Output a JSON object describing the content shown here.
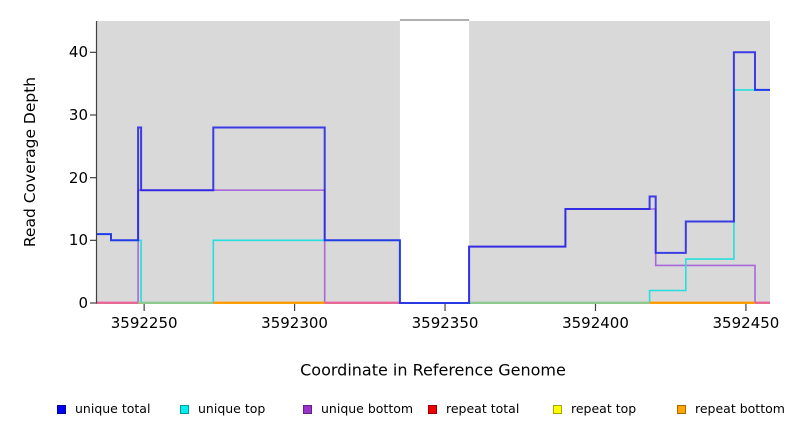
{
  "chart_data": {
    "type": "line",
    "style": "step",
    "title": "",
    "xlabel": "Coordinate in Reference Genome",
    "ylabel": "Read Coverage Depth",
    "xlim": [
      3592234,
      3592458
    ],
    "ylim": [
      0,
      45
    ],
    "xticks": [
      3592250,
      3592300,
      3592350,
      3592400,
      3592450
    ],
    "yticks": [
      0,
      10,
      20,
      30,
      40
    ],
    "plot_background": "#d9d9d9",
    "highlight_band": {
      "x0": 3592335,
      "x1": 3592358,
      "fill": "#ffffff",
      "top_border": "#808080"
    },
    "series": [
      {
        "name": "repeat total",
        "legend_color": "#ee0000",
        "line_color": "#ee0000",
        "width": 1.6,
        "points": [
          [
            3592234,
            0
          ]
        ]
      },
      {
        "name": "repeat top",
        "legend_color": "#ffff00",
        "line_color": "#ffff00",
        "width": 1.6,
        "points": [
          [
            3592234,
            0
          ]
        ]
      },
      {
        "name": "repeat bottom",
        "legend_color": "#ffa500",
        "line_color": "#ff9800",
        "width": 1.6,
        "points": [
          [
            3592234,
            0
          ]
        ]
      },
      {
        "name": "unique bottom",
        "legend_color": "#9932cc",
        "line_color": "#a868dc",
        "width": 1.6,
        "points": [
          [
            3592234,
            0
          ],
          [
            3592248,
            18
          ],
          [
            3592310,
            0
          ],
          [
            3592358,
            9
          ],
          [
            3592390,
            15
          ],
          [
            3592420,
            6
          ],
          [
            3592453,
            0
          ]
        ]
      },
      {
        "name": "unique top",
        "legend_color": "#00eeee",
        "line_color": "#26dede",
        "width": 1.6,
        "points": [
          [
            3592234,
            11
          ],
          [
            3592239,
            10
          ],
          [
            3592249,
            0
          ],
          [
            3592273,
            10
          ],
          [
            3592335,
            0
          ],
          [
            3592418,
            2
          ],
          [
            3592430,
            7
          ],
          [
            3592446,
            34
          ]
        ]
      },
      {
        "name": "unique total",
        "legend_color": "#0000ee",
        "line_color": "#2020e6",
        "width": 2,
        "opacity": 0.85,
        "points": [
          [
            3592234,
            11
          ],
          [
            3592239,
            10
          ],
          [
            3592248,
            28
          ],
          [
            3592249,
            18
          ],
          [
            3592273,
            28
          ],
          [
            3592310,
            10
          ],
          [
            3592335,
            0
          ],
          [
            3592358,
            9
          ],
          [
            3592390,
            15
          ],
          [
            3592418,
            17
          ],
          [
            3592420,
            8
          ],
          [
            3592430,
            13
          ],
          [
            3592446,
            40
          ],
          [
            3592453,
            34
          ]
        ]
      }
    ],
    "zero_line_visible_colors": [
      {
        "x0": 3592234,
        "x1": 3592248,
        "color": "#ec609b"
      },
      {
        "x0": 3592248,
        "x1": 3592273,
        "color": "#8fcb96"
      },
      {
        "x0": 3592273,
        "x1": 3592310,
        "color": "#ff9800"
      },
      {
        "x0": 3592310,
        "x1": 3592335,
        "color": "#ec609b"
      },
      {
        "x0": 3592358,
        "x1": 3592418,
        "color": "#8fcb96"
      },
      {
        "x0": 3592418,
        "x1": 3592453,
        "color": "#ff9800"
      },
      {
        "x0": 3592453,
        "x1": 3592458,
        "color": "#ec609b"
      }
    ],
    "legend_position": "bottom"
  },
  "legend": {
    "items": [
      {
        "label": "unique total",
        "color": "#0000ee"
      },
      {
        "label": "unique top",
        "color": "#00eeee"
      },
      {
        "label": "unique bottom",
        "color": "#9932cc"
      },
      {
        "label": "repeat total",
        "color": "#ee0000"
      },
      {
        "label": "repeat top",
        "color": "#ffff00"
      },
      {
        "label": "repeat bottom",
        "color": "#ffa500"
      }
    ]
  }
}
